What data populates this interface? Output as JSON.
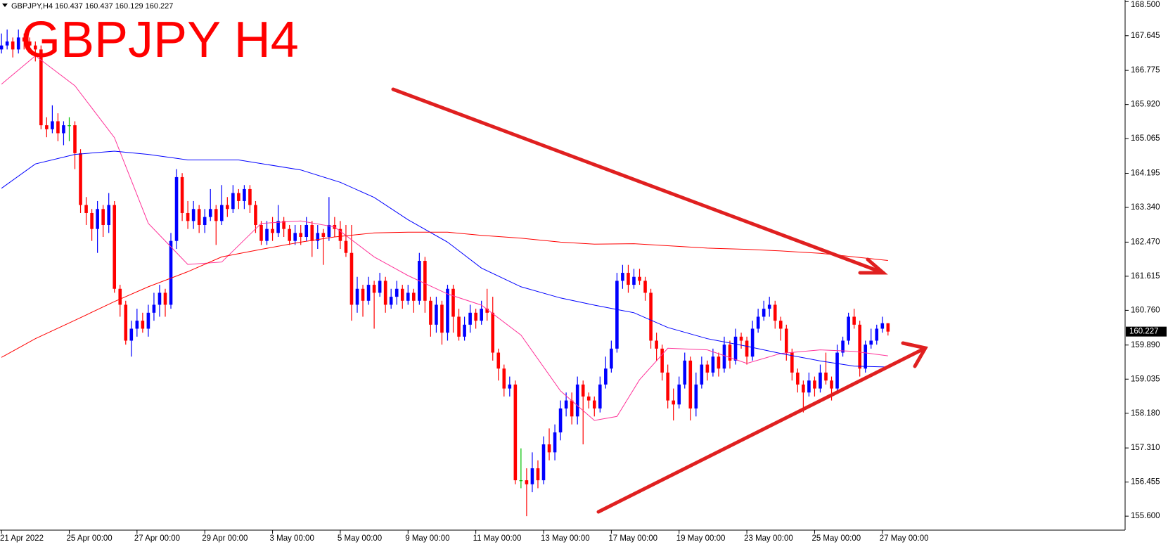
{
  "chart_data": {
    "type": "candlestick",
    "title": "GBPJPY H4",
    "symbol_info": "GBPJPY,H4  160.437 160.437 160.129 160.227",
    "last_price_label": "160.227",
    "up_color": "#0000ff",
    "down_color": "#ff0000",
    "doji_color": "#00c000",
    "ylim": [
      155.25,
      168.54
    ],
    "yticks": [
      {
        "value": 168.5,
        "label": "168.500"
      },
      167.645,
      166.775,
      {
        "value": 165.92,
        "label": "165.920"
      },
      165.065,
      164.195,
      {
        "value": 163.34,
        "label": "163.340"
      },
      {
        "value": 162.47,
        "label": "162.470"
      },
      161.615,
      {
        "value": 160.76,
        "label": "160.760"
      },
      {
        "value": 159.89,
        "label": "159.890"
      },
      159.035,
      {
        "value": 158.18,
        "label": "158.180"
      },
      {
        "value": 157.31,
        "label": "157.310"
      },
      156.455,
      {
        "value": 155.6,
        "label": "155.600"
      }
    ],
    "categories": [
      "21 Apr 2022",
      null,
      null,
      null,
      null,
      null,
      null,
      null,
      null,
      null,
      null,
      null,
      "25 Apr 00:00",
      null,
      null,
      null,
      null,
      null,
      null,
      null,
      null,
      null,
      null,
      null,
      "27 Apr 00:00",
      null,
      null,
      null,
      null,
      null,
      null,
      null,
      null,
      null,
      null,
      null,
      "29 Apr 00:00",
      null,
      null,
      null,
      null,
      null,
      null,
      null,
      null,
      null,
      null,
      null,
      "3 May 00:00",
      null,
      null,
      null,
      null,
      null,
      null,
      null,
      null,
      null,
      null,
      null,
      "5 May 00:00",
      null,
      null,
      null,
      null,
      null,
      null,
      null,
      null,
      null,
      null,
      null,
      "9 May 00:00",
      null,
      null,
      null,
      null,
      null,
      null,
      null,
      null,
      null,
      null,
      null,
      "11 May 00:00",
      null,
      null,
      null,
      null,
      null,
      null,
      null,
      null,
      null,
      null,
      null,
      "13 May 00:00",
      null,
      null,
      null,
      null,
      null,
      null,
      null,
      null,
      null,
      null,
      null,
      "17 May 00:00",
      null,
      null,
      null,
      null,
      null,
      null,
      null,
      null,
      null,
      null,
      null,
      "19 May 00:00",
      null,
      null,
      null,
      null,
      null,
      null,
      null,
      null,
      null,
      null,
      null,
      "23 May 00:00",
      null,
      null,
      null,
      null,
      null,
      null,
      null,
      null,
      null,
      null,
      null,
      "25 May 00:00",
      null,
      null,
      null,
      null,
      null,
      null,
      null,
      null,
      null,
      null,
      null,
      "27 May 00:00",
      null
    ],
    "ohlc": [
      [
        167.3,
        167.7,
        167.2,
        167.4
      ],
      [
        167.4,
        167.8,
        167.3,
        167.5
      ],
      [
        167.5,
        167.6,
        167.1,
        167.3
      ],
      [
        167.3,
        167.8,
        167.2,
        167.6
      ],
      [
        167.6,
        167.7,
        167.3,
        167.5
      ],
      [
        167.5,
        167.6,
        167.2,
        167.4
      ],
      [
        167.4,
        167.5,
        167.0,
        167.3
      ],
      [
        167.3,
        167.4,
        165.3,
        165.4
      ],
      [
        165.4,
        165.6,
        165.1,
        165.3
      ],
      [
        165.3,
        165.9,
        165.2,
        165.5
      ],
      [
        165.5,
        165.7,
        165.0,
        165.2
      ],
      [
        165.2,
        165.5,
        164.9,
        165.4
      ],
      [
        165.4,
        165.6,
        165.0,
        165.4
      ],
      [
        165.4,
        165.5,
        164.3,
        164.7
      ],
      [
        164.7,
        164.8,
        163.2,
        163.4
      ],
      [
        163.4,
        163.6,
        162.9,
        163.2
      ],
      [
        163.2,
        163.3,
        162.5,
        162.8
      ],
      [
        162.8,
        163.5,
        162.2,
        163.3
      ],
      [
        163.3,
        163.4,
        162.6,
        162.9
      ],
      [
        162.9,
        163.7,
        162.7,
        163.4
      ],
      [
        163.4,
        163.5,
        161.2,
        161.3
      ],
      [
        161.3,
        161.4,
        160.6,
        160.9
      ],
      [
        160.9,
        161.0,
        159.9,
        160.0
      ],
      [
        160.0,
        160.5,
        159.6,
        160.3
      ],
      [
        160.3,
        160.8,
        160.1,
        160.5
      ],
      [
        160.5,
        160.7,
        160.2,
        160.3
      ],
      [
        160.3,
        160.9,
        160.1,
        160.7
      ],
      [
        160.7,
        161.2,
        160.5,
        160.9
      ],
      [
        160.9,
        161.4,
        160.6,
        161.2
      ],
      [
        161.2,
        161.3,
        160.6,
        160.9
      ],
      [
        160.9,
        162.7,
        160.8,
        162.5
      ],
      [
        162.5,
        164.3,
        162.3,
        164.1
      ],
      [
        164.1,
        164.2,
        163.0,
        163.2
      ],
      [
        163.2,
        163.5,
        162.8,
        163.0
      ],
      [
        163.0,
        163.5,
        162.8,
        163.3
      ],
      [
        163.3,
        163.4,
        162.7,
        162.9
      ],
      [
        162.9,
        163.3,
        162.7,
        163.1
      ],
      [
        163.1,
        163.8,
        163.0,
        163.3
      ],
      [
        163.3,
        163.4,
        162.4,
        163.0
      ],
      [
        163.0,
        163.9,
        162.9,
        163.4
      ],
      [
        163.4,
        163.6,
        163.1,
        163.3
      ],
      [
        163.3,
        163.9,
        163.2,
        163.7
      ],
      [
        163.7,
        163.8,
        163.3,
        163.5
      ],
      [
        163.5,
        163.9,
        163.3,
        163.8
      ],
      [
        163.8,
        163.9,
        163.2,
        163.4
      ],
      [
        163.4,
        163.5,
        162.7,
        162.9
      ],
      [
        162.9,
        163.0,
        162.4,
        162.5
      ],
      [
        162.5,
        163.0,
        162.4,
        162.8
      ],
      [
        162.8,
        163.1,
        162.5,
        162.7
      ],
      [
        162.7,
        163.4,
        162.6,
        163.0
      ],
      [
        163.0,
        163.1,
        162.6,
        162.8
      ],
      [
        162.8,
        162.9,
        162.4,
        162.5
      ],
      [
        162.5,
        162.9,
        162.4,
        162.7
      ],
      [
        162.7,
        162.9,
        162.4,
        162.6
      ],
      [
        162.6,
        163.1,
        162.5,
        162.9
      ],
      [
        162.9,
        163.0,
        162.1,
        162.5
      ],
      [
        162.5,
        162.9,
        162.3,
        162.7
      ],
      [
        162.7,
        162.8,
        161.9,
        162.6
      ],
      [
        162.6,
        163.6,
        162.5,
        162.9
      ],
      [
        162.9,
        163.1,
        162.6,
        162.8
      ],
      [
        162.8,
        163.0,
        162.3,
        162.5
      ],
      [
        162.5,
        162.9,
        162.1,
        162.2
      ],
      [
        162.2,
        162.9,
        160.5,
        160.9
      ],
      [
        160.9,
        161.6,
        160.7,
        161.3
      ],
      [
        161.3,
        161.4,
        160.6,
        161.0
      ],
      [
        161.0,
        161.6,
        160.9,
        161.4
      ],
      [
        161.4,
        161.5,
        160.3,
        161.2
      ],
      [
        161.2,
        161.7,
        161.1,
        161.5
      ],
      [
        161.5,
        161.6,
        160.7,
        160.9
      ],
      [
        160.9,
        161.3,
        160.8,
        161.1
      ],
      [
        161.1,
        161.5,
        160.9,
        161.3
      ],
      [
        161.3,
        161.4,
        160.8,
        161.0
      ],
      [
        161.0,
        161.4,
        160.9,
        161.2
      ],
      [
        161.2,
        161.3,
        160.7,
        161.0
      ],
      [
        161.0,
        162.2,
        160.9,
        162.0
      ],
      [
        162.0,
        162.1,
        160.7,
        161.0
      ],
      [
        161.0,
        161.1,
        160.1,
        160.4
      ],
      [
        160.4,
        161.1,
        160.2,
        160.9
      ],
      [
        160.9,
        161.0,
        159.9,
        160.2
      ],
      [
        160.2,
        161.4,
        160.0,
        161.3
      ],
      [
        161.3,
        161.4,
        160.2,
        160.6
      ],
      [
        160.6,
        160.8,
        160.0,
        160.1
      ],
      [
        160.1,
        160.6,
        160.0,
        160.4
      ],
      [
        160.4,
        160.9,
        160.2,
        160.7
      ],
      [
        160.7,
        160.8,
        160.3,
        160.5
      ],
      [
        160.5,
        161.0,
        160.4,
        160.8
      ],
      [
        160.8,
        161.3,
        160.5,
        160.7
      ],
      [
        160.7,
        161.1,
        159.5,
        159.7
      ],
      [
        159.7,
        159.8,
        159.0,
        159.3
      ],
      [
        159.3,
        159.4,
        158.6,
        158.8
      ],
      [
        158.8,
        159.1,
        158.6,
        158.9
      ],
      [
        158.9,
        159.0,
        156.4,
        156.5
      ],
      [
        156.5,
        157.3,
        156.3,
        156.5
      ],
      [
        156.5,
        156.8,
        155.6,
        156.4
      ],
      [
        156.4,
        157.2,
        156.2,
        156.8
      ],
      [
        156.8,
        157.0,
        156.3,
        156.5
      ],
      [
        156.5,
        157.6,
        156.4,
        157.4
      ],
      [
        157.4,
        157.8,
        157.0,
        157.2
      ],
      [
        157.2,
        157.9,
        157.0,
        157.7
      ],
      [
        157.7,
        158.5,
        157.5,
        158.3
      ],
      [
        158.3,
        158.7,
        158.1,
        158.5
      ],
      [
        158.5,
        158.7,
        157.9,
        158.1
      ],
      [
        158.1,
        159.1,
        157.9,
        158.9
      ],
      [
        158.9,
        159.0,
        157.4,
        158.6
      ],
      [
        158.6,
        158.7,
        158.3,
        158.5
      ],
      [
        158.5,
        158.6,
        158.1,
        158.3
      ],
      [
        158.3,
        159.1,
        158.2,
        158.9
      ],
      [
        158.9,
        159.6,
        158.8,
        159.3
      ],
      [
        159.3,
        160.0,
        159.2,
        159.8
      ],
      [
        159.8,
        161.7,
        159.7,
        161.5
      ],
      [
        161.5,
        161.9,
        161.3,
        161.7
      ],
      [
        161.7,
        161.9,
        161.2,
        161.4
      ],
      [
        161.4,
        161.8,
        161.3,
        161.6
      ],
      [
        161.6,
        161.8,
        161.4,
        161.5
      ],
      [
        161.5,
        161.6,
        161.0,
        161.2
      ],
      [
        161.2,
        161.3,
        159.8,
        160.0
      ],
      [
        160.0,
        160.2,
        159.5,
        159.8
      ],
      [
        159.8,
        159.9,
        159.0,
        159.2
      ],
      [
        159.2,
        159.4,
        158.3,
        158.5
      ],
      [
        158.5,
        158.8,
        158.0,
        158.4
      ],
      [
        158.4,
        159.1,
        158.3,
        158.9
      ],
      [
        158.9,
        159.7,
        158.8,
        159.5
      ],
      [
        159.5,
        159.6,
        158.0,
        158.3
      ],
      [
        158.3,
        159.2,
        158.1,
        158.9
      ],
      [
        158.9,
        159.6,
        158.8,
        159.4
      ],
      [
        159.4,
        159.5,
        159.0,
        159.2
      ],
      [
        159.2,
        159.8,
        159.1,
        159.6
      ],
      [
        159.6,
        159.7,
        159.1,
        159.3
      ],
      [
        159.3,
        160.1,
        159.2,
        159.9
      ],
      [
        159.9,
        160.0,
        159.3,
        159.5
      ],
      [
        159.5,
        160.3,
        159.4,
        160.1
      ],
      [
        160.1,
        160.2,
        159.8,
        160.0
      ],
      [
        160.0,
        160.1,
        159.4,
        159.6
      ],
      [
        159.6,
        160.5,
        159.5,
        160.3
      ],
      [
        160.3,
        160.8,
        160.2,
        160.6
      ],
      [
        160.6,
        161.0,
        160.5,
        160.8
      ],
      [
        160.8,
        161.1,
        160.6,
        160.9
      ],
      [
        160.9,
        161.0,
        160.3,
        160.5
      ],
      [
        160.5,
        160.6,
        160.0,
        160.3
      ],
      [
        160.3,
        160.4,
        159.5,
        159.7
      ],
      [
        159.7,
        159.8,
        159.0,
        159.2
      ],
      [
        159.2,
        159.3,
        158.7,
        158.9
      ],
      [
        158.9,
        159.0,
        158.2,
        158.7
      ],
      [
        158.7,
        159.2,
        158.6,
        159.0
      ],
      [
        159.0,
        159.1,
        158.6,
        158.8
      ],
      [
        158.8,
        159.4,
        158.7,
        159.2
      ],
      [
        159.2,
        159.7,
        158.9,
        159.0
      ],
      [
        159.0,
        159.1,
        158.5,
        158.8
      ],
      [
        158.8,
        159.9,
        158.7,
        159.7
      ],
      [
        159.7,
        160.1,
        159.6,
        160.0
      ],
      [
        160.0,
        160.7,
        159.9,
        160.6
      ],
      [
        160.6,
        160.8,
        160.3,
        160.4
      ],
      [
        160.4,
        160.5,
        159.1,
        159.3
      ],
      [
        159.3,
        160.0,
        159.2,
        159.9
      ],
      [
        159.9,
        160.3,
        159.8,
        160.0
      ],
      [
        160.0,
        160.4,
        159.9,
        160.3
      ],
      [
        160.3,
        160.6,
        160.2,
        160.437
      ],
      [
        160.437,
        160.437,
        160.129,
        160.227
      ]
    ],
    "series": [
      {
        "color": "#ff3399",
        "x": [
          0,
          6,
          13,
          20,
          26,
          33,
          39,
          46,
          53,
          59,
          66,
          72,
          79,
          85,
          92,
          99,
          105,
          109,
          113,
          118,
          125,
          132,
          138,
          145,
          151,
          157
        ],
        "values": [
          166.43,
          167.14,
          166.39,
          165.09,
          162.94,
          161.91,
          161.97,
          162.94,
          163.0,
          162.85,
          162.1,
          161.63,
          161.17,
          160.89,
          160.14,
          158.74,
          158.0,
          158.1,
          159.02,
          159.81,
          159.77,
          159.43,
          159.68,
          159.77,
          159.73,
          159.62
        ]
      },
      {
        "color": "#0000ff",
        "x": [
          0,
          6,
          13,
          20,
          26,
          33,
          42,
          53,
          60,
          66,
          72,
          79,
          85,
          92,
          99,
          105,
          112,
          118,
          125,
          132,
          138,
          145,
          151,
          157
        ],
        "values": [
          163.82,
          164.43,
          164.67,
          164.75,
          164.67,
          164.53,
          164.53,
          164.28,
          163.97,
          163.59,
          163.03,
          162.47,
          161.82,
          161.35,
          161.07,
          160.89,
          160.7,
          160.33,
          160.05,
          159.86,
          159.68,
          159.49,
          159.36,
          159.34
        ]
      },
      {
        "color": "#ff0000",
        "x": [
          0,
          6,
          13,
          20,
          26,
          33,
          39,
          46,
          53,
          59,
          66,
          72,
          79,
          85,
          92,
          99,
          105,
          112,
          118,
          125,
          132,
          138,
          145,
          151,
          157
        ],
        "values": [
          159.58,
          160.05,
          160.51,
          160.98,
          161.35,
          161.73,
          162.1,
          162.29,
          162.47,
          162.6,
          162.7,
          162.72,
          162.72,
          162.64,
          162.57,
          162.47,
          162.42,
          162.43,
          162.38,
          162.32,
          162.29,
          162.25,
          162.19,
          162.1,
          162.01
        ]
      }
    ]
  }
}
